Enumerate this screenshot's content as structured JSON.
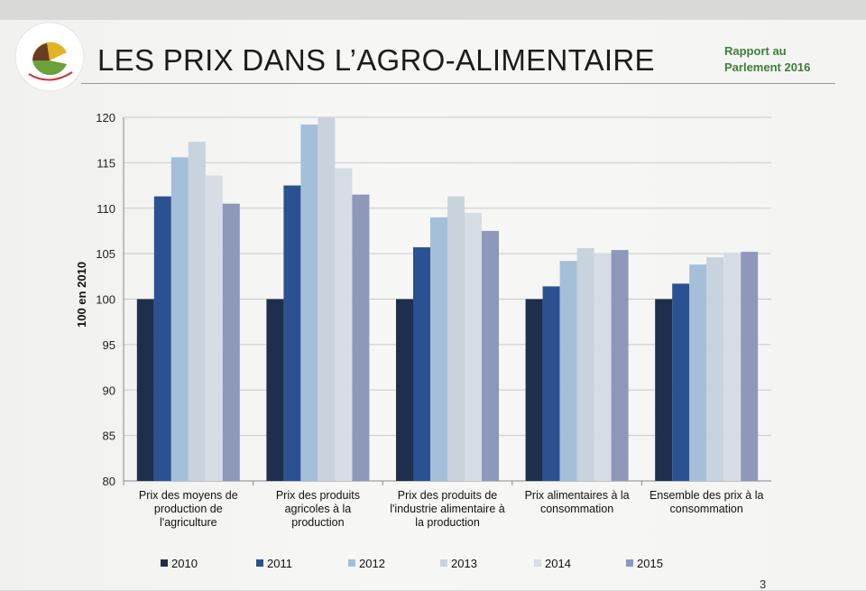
{
  "slide": {
    "title": "LES PRIX DANS L’AGRO-ALIMENTAIRE",
    "report_line1": "Rapport au",
    "report_line2": "Parlement 2016",
    "page_number": "3"
  },
  "colors": {
    "2010": "#1e2f4d",
    "2011": "#2a5191",
    "2012": "#a5bfd9",
    "2013": "#c8d3de",
    "2014": "#d7dde4",
    "2015": "#8d98bb",
    "title_accent": "#3f7d39"
  },
  "chart_data": {
    "type": "bar",
    "title": "",
    "xlabel": "",
    "ylabel": "100 en 2010",
    "ylim": [
      80,
      120
    ],
    "yticks": [
      80,
      85,
      90,
      95,
      100,
      105,
      110,
      115,
      120
    ],
    "grid": true,
    "legend_position": "bottom",
    "categories": [
      [
        "Prix des moyens de",
        "production de",
        "l'agriculture"
      ],
      [
        "Prix des produits",
        "agricoles à la",
        "production"
      ],
      [
        "Prix des produits de",
        "l'industrie alimentaire à",
        "la production"
      ],
      [
        "Prix alimentaires à la",
        "consommation"
      ],
      [
        "Ensemble des prix à la",
        "consommation"
      ]
    ],
    "series": [
      {
        "name": "2010",
        "values": [
          100,
          100,
          100,
          100,
          100
        ]
      },
      {
        "name": "2011",
        "values": [
          111.3,
          112.5,
          105.7,
          101.4,
          101.7
        ]
      },
      {
        "name": "2012",
        "values": [
          115.6,
          119.2,
          109.0,
          104.2,
          103.8
        ]
      },
      {
        "name": "2013",
        "values": [
          117.3,
          120.0,
          111.3,
          105.6,
          104.6
        ]
      },
      {
        "name": "2014",
        "values": [
          113.6,
          114.4,
          109.5,
          105.0,
          105.1
        ]
      },
      {
        "name": "2015",
        "values": [
          110.5,
          111.5,
          107.5,
          105.4,
          105.2
        ]
      }
    ]
  }
}
